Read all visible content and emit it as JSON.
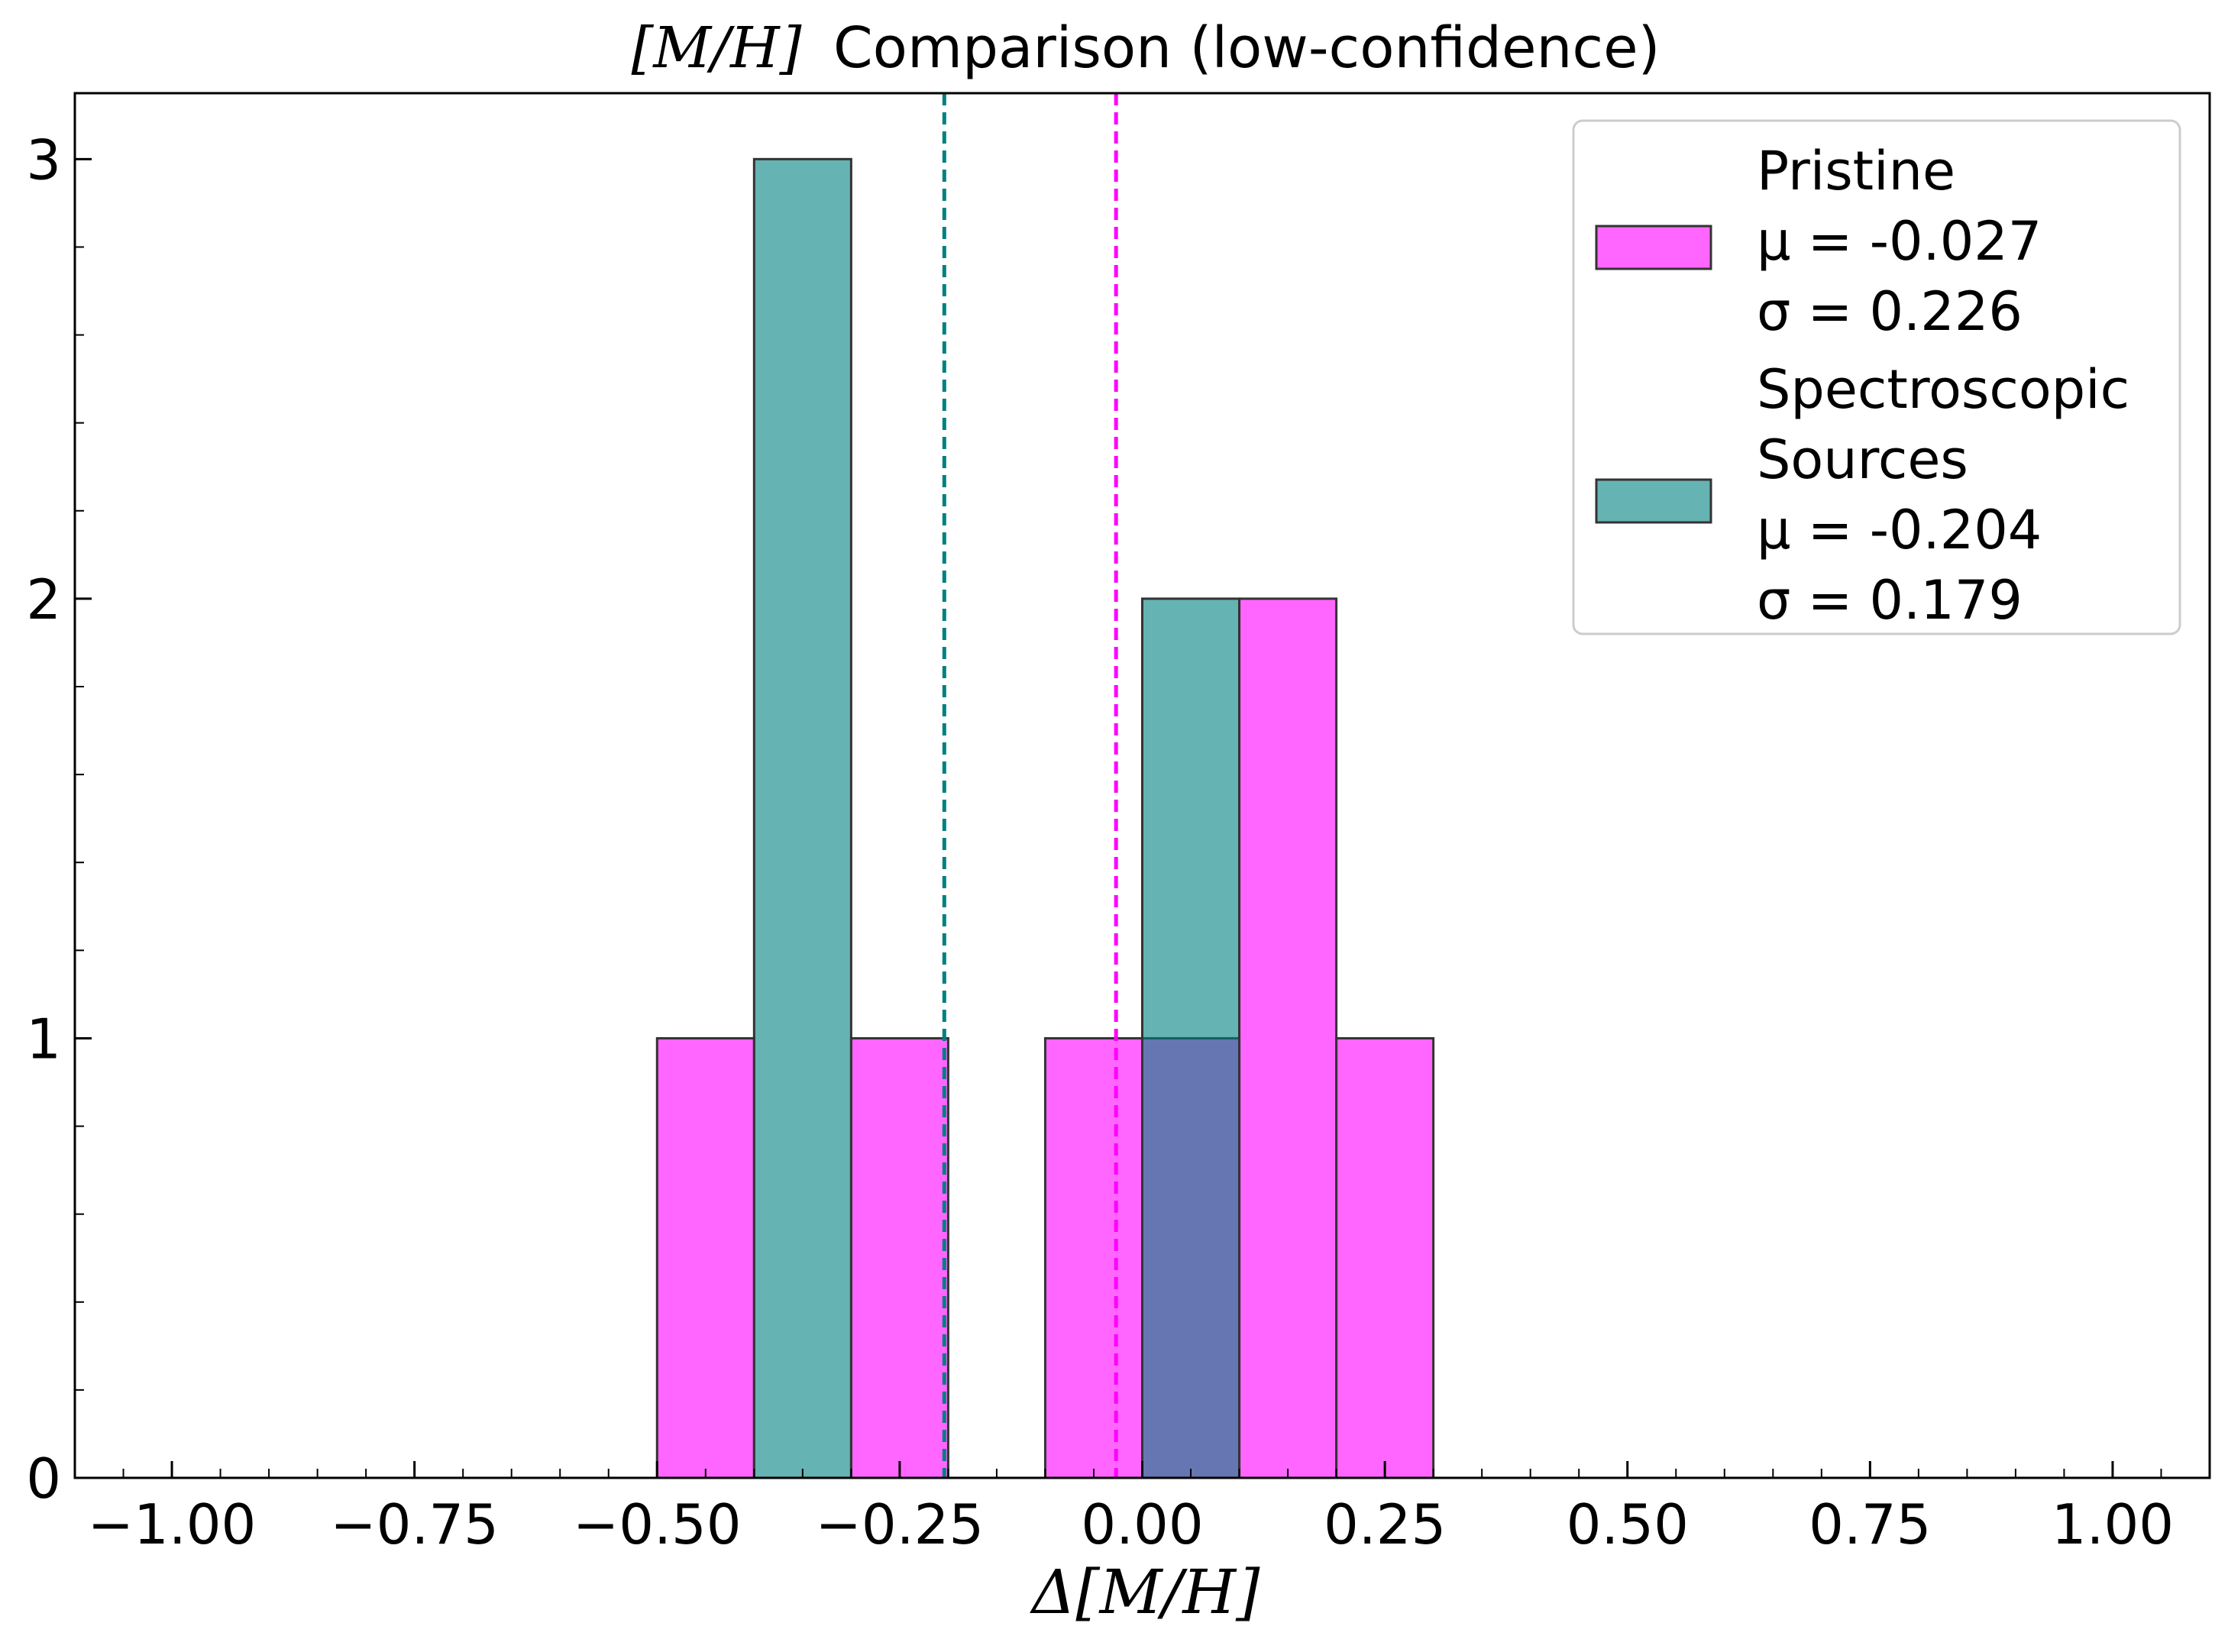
{
  "chart_data": {
    "type": "bar",
    "title": "[M/H] Comparison (low-confidence)",
    "title_math": "[M/H]",
    "title_text": "Comparison (low-confidence)",
    "xlabel": "Δ[M/H]",
    "ylabel": "",
    "xlim": [
      -1.1,
      1.1
    ],
    "ylim": [
      0,
      3.15
    ],
    "xticks": [
      -1.0,
      -0.75,
      -0.5,
      -0.25,
      0.0,
      0.25,
      0.5,
      0.75,
      1.0
    ],
    "xtick_labels": [
      "−1.00",
      "−0.75",
      "−0.50",
      "−0.25",
      "0.00",
      "0.25",
      "0.50",
      "0.75",
      "1.00"
    ],
    "yticks": [
      0,
      1,
      2,
      3
    ],
    "ytick_labels": [
      "0",
      "1",
      "2",
      "3"
    ],
    "grid": false,
    "legend_position": "top-right",
    "series": [
      {
        "name": "Pristine",
        "color": "#ff00ff",
        "alpha": 0.6,
        "bins": [
          {
            "x0": -0.5,
            "x1": -0.4,
            "count": 1
          },
          {
            "x0": -0.3,
            "x1": -0.2,
            "count": 1
          },
          {
            "x0": -0.1,
            "x1": 0.0,
            "count": 1
          },
          {
            "x0": 0.0,
            "x1": 0.1,
            "count": 1
          },
          {
            "x0": 0.1,
            "x1": 0.2,
            "count": 2
          },
          {
            "x0": 0.2,
            "x1": 0.3,
            "count": 1
          }
        ],
        "mean": -0.027,
        "legend_lines": [
          "Pristine",
          "μ = -0.027",
          "σ = 0.226"
        ]
      },
      {
        "name": "Spectroscopic Sources",
        "color": "#008080",
        "alpha": 0.6,
        "bins": [
          {
            "x0": -0.4,
            "x1": -0.3,
            "count": 3
          },
          {
            "x0": 0.0,
            "x1": 0.1,
            "count": 2
          }
        ],
        "mean": -0.204,
        "legend_lines": [
          "Spectroscopic",
          "Sources",
          "μ = -0.204",
          "σ = 0.179"
        ]
      }
    ],
    "mean_lines": [
      {
        "series": "Pristine",
        "x": -0.027,
        "color": "#ff00ff",
        "style": "dashed"
      },
      {
        "series": "Spectroscopic Sources",
        "x": -0.204,
        "color": "#008080",
        "style": "dashed"
      }
    ]
  }
}
